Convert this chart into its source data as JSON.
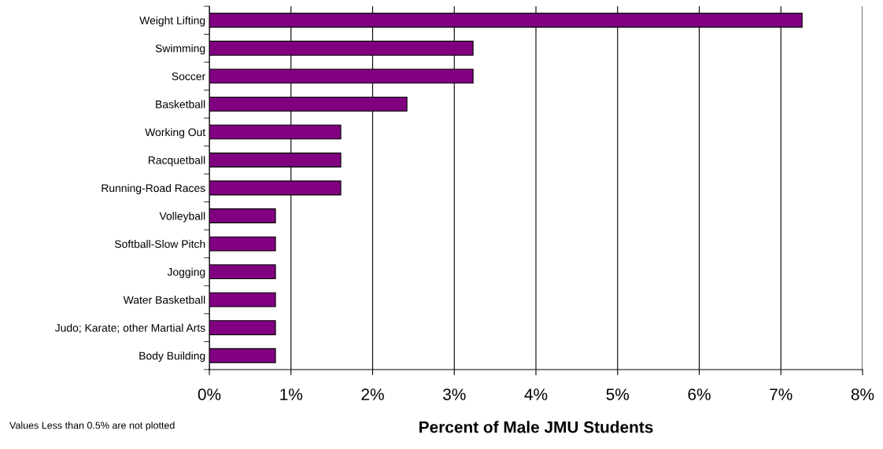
{
  "chart_data": {
    "type": "bar",
    "orientation": "horizontal",
    "categories": [
      "Weight Lifting",
      "Swimming",
      "Soccer",
      "Basketball",
      "Working Out",
      "Racquetball",
      "Running-Road Races",
      "Volleyball",
      "Softball-Slow Pitch",
      "Jogging",
      "Water Basketball",
      "Judo; Karate; other Martial Arts",
      "Body Building"
    ],
    "values": [
      7.26,
      3.23,
      3.23,
      2.42,
      1.61,
      1.61,
      1.61,
      0.81,
      0.81,
      0.81,
      0.81,
      0.81,
      0.81
    ],
    "color": "#800080",
    "xlabel": "Percent of Male JMU Students",
    "xlim": [
      0,
      8
    ],
    "xticks": [
      {
        "value": 0,
        "label": "0%"
      },
      {
        "value": 1,
        "label": "1%"
      },
      {
        "value": 2,
        "label": "2%"
      },
      {
        "value": 3,
        "label": "3%"
      },
      {
        "value": 4,
        "label": "4%"
      },
      {
        "value": 5,
        "label": "5%"
      },
      {
        "value": 6,
        "label": "6%"
      },
      {
        "value": 7,
        "label": "7%"
      },
      {
        "value": 8,
        "label": "8%"
      }
    ],
    "grid": "x",
    "annotations": [
      "Values Less than 0.5% are not plotted"
    ]
  }
}
